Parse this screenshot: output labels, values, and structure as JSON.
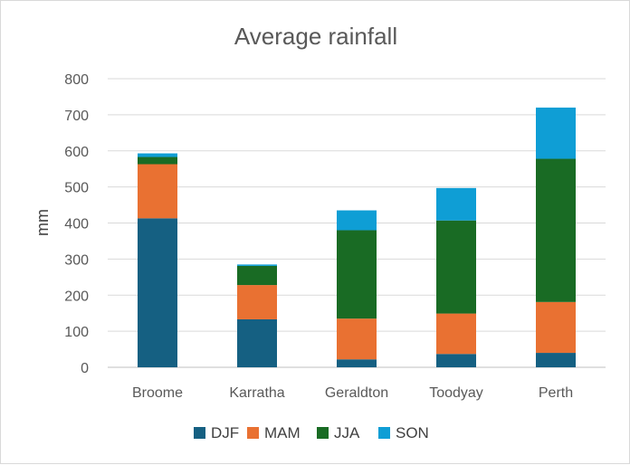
{
  "chart_data": {
    "type": "bar",
    "stacked": true,
    "title": "Average rainfall",
    "xlabel": "",
    "ylabel": "mm",
    "ylim": [
      0,
      800
    ],
    "yticks": [
      0,
      100,
      200,
      300,
      400,
      500,
      600,
      700,
      800
    ],
    "categories": [
      "Broome",
      "Karratha",
      "Geraldton",
      "Toodyay",
      "Perth"
    ],
    "series": [
      {
        "name": "DJF",
        "color": "#156082",
        "values": [
          413,
          133,
          22,
          37,
          40
        ]
      },
      {
        "name": "MAM",
        "color": "#E97132",
        "values": [
          150,
          95,
          113,
          112,
          141
        ]
      },
      {
        "name": "JJA",
        "color": "#196B24",
        "values": [
          20,
          53,
          245,
          258,
          397
        ]
      },
      {
        "name": "SON",
        "color": "#0F9ED5",
        "values": [
          10,
          4,
          55,
          90,
          142
        ]
      }
    ],
    "grid": true,
    "legend": "bottom"
  }
}
